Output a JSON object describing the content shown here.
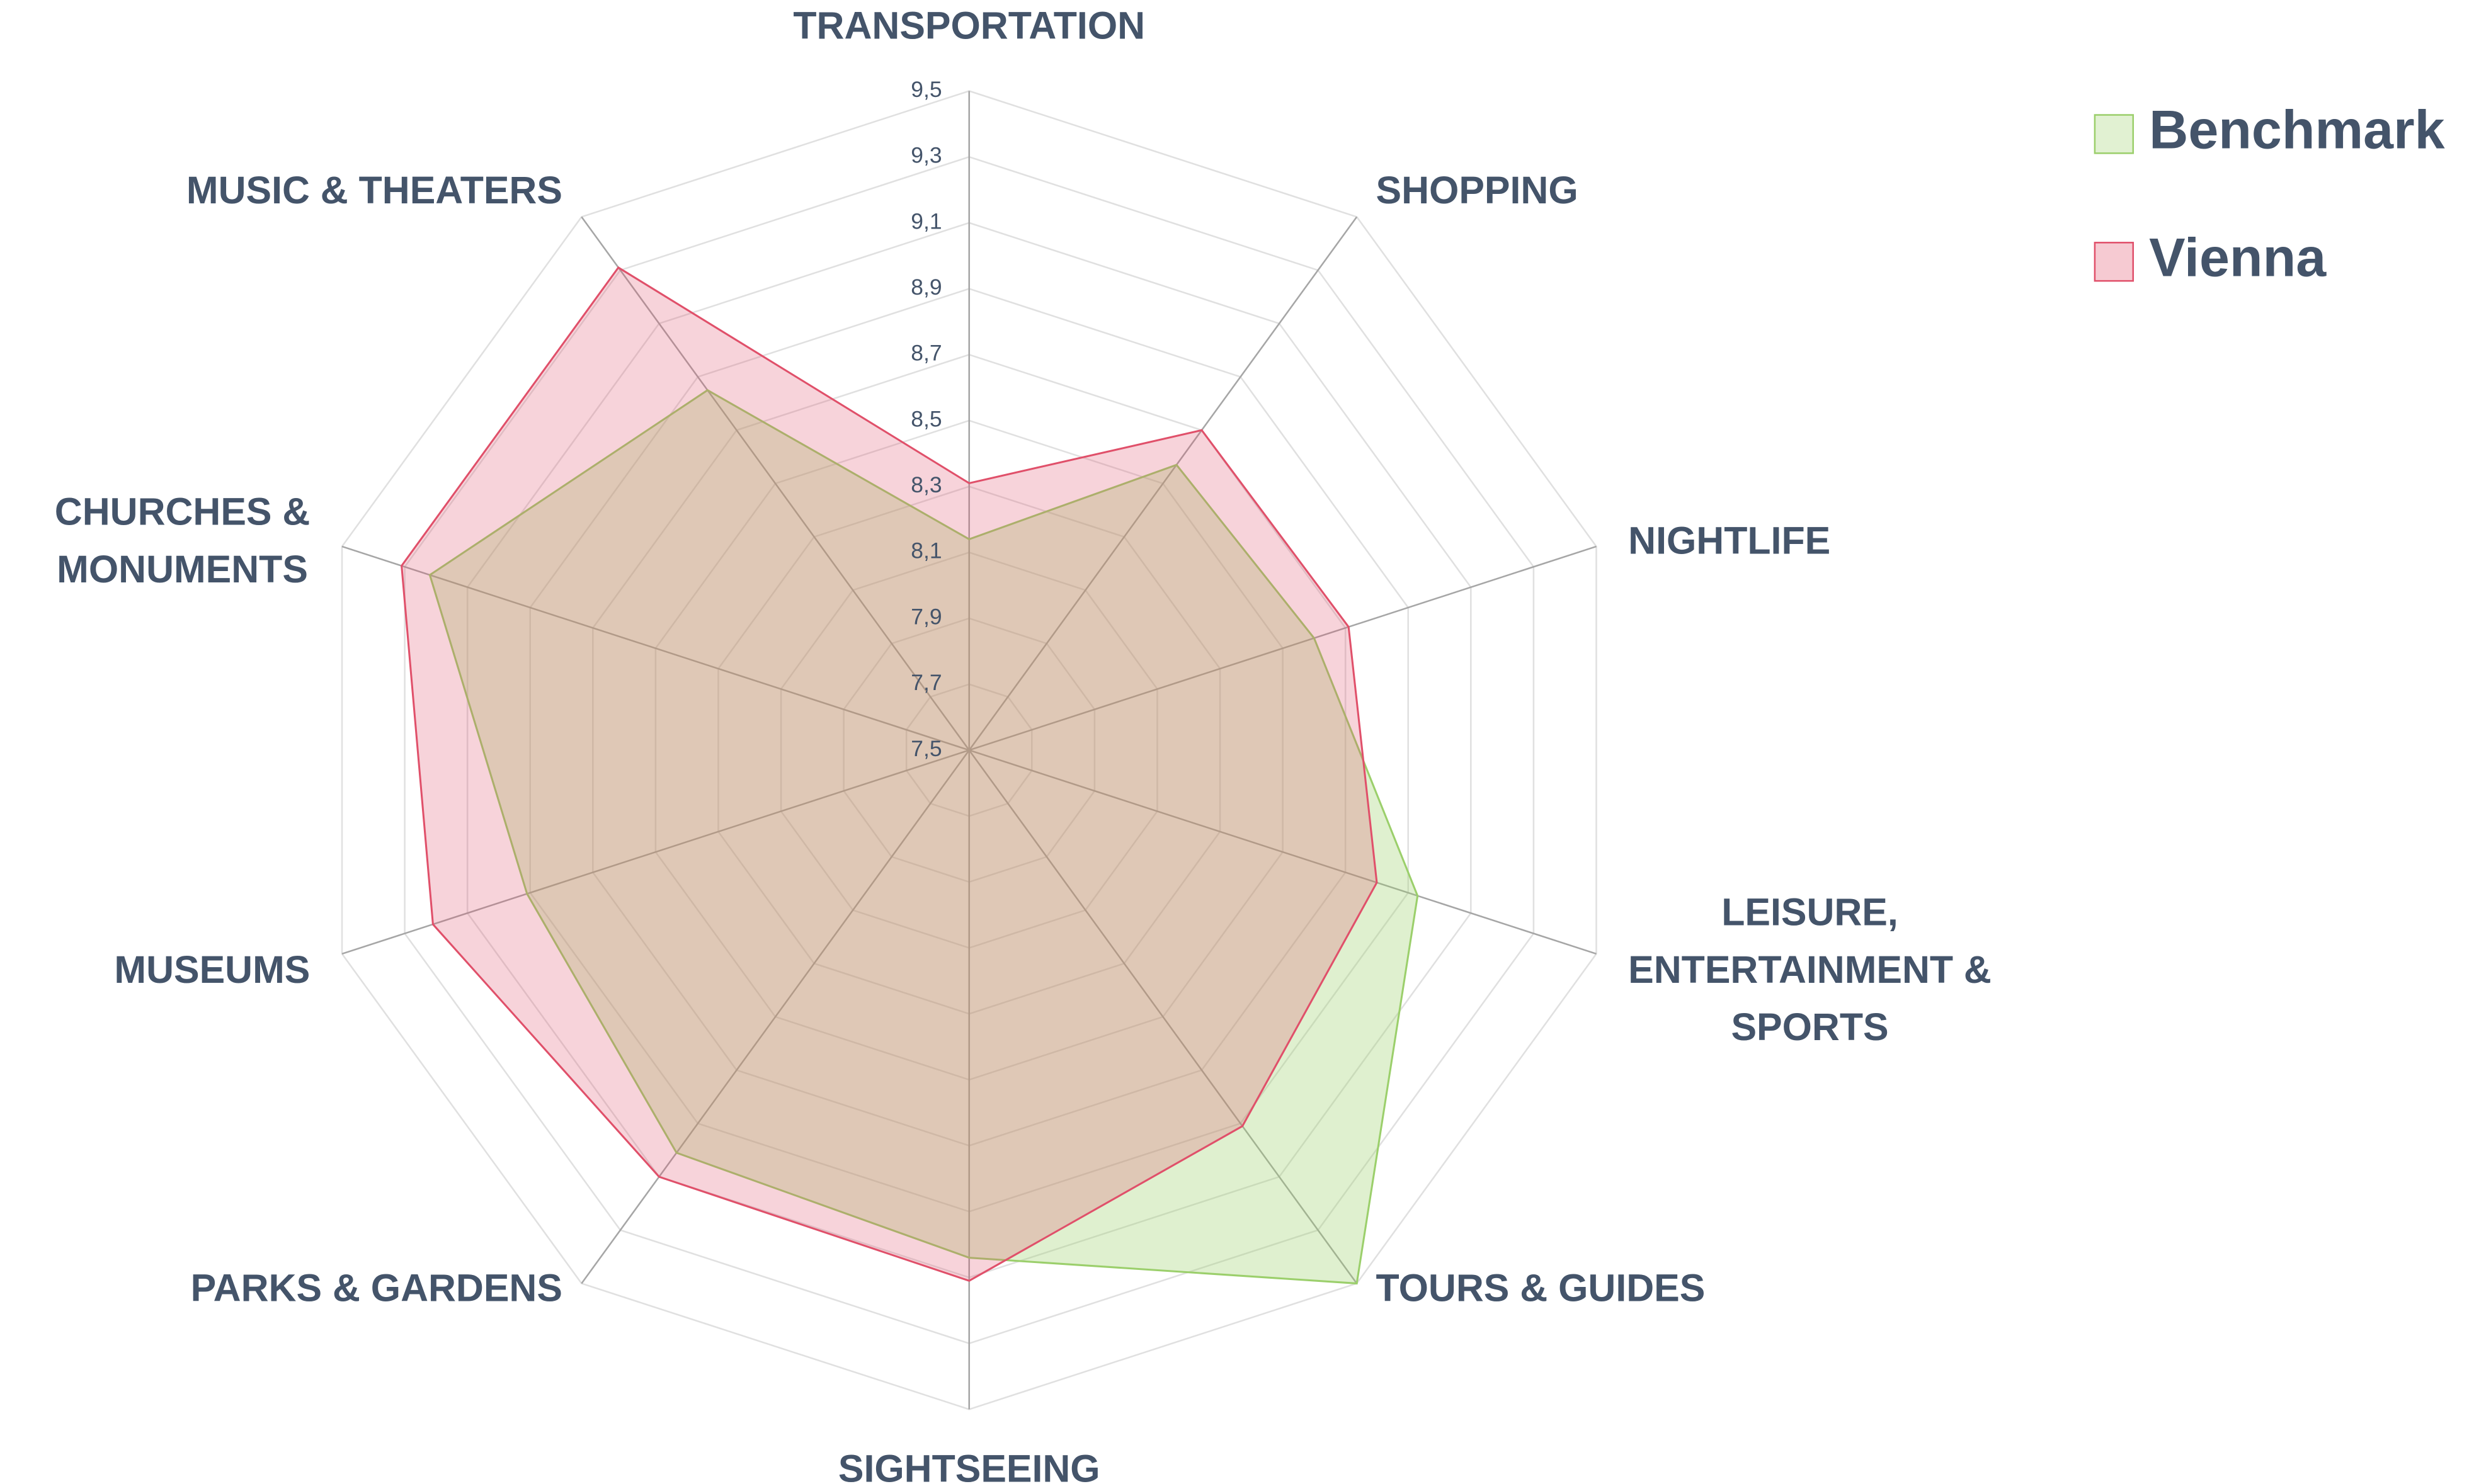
{
  "chart_data": {
    "type": "radar",
    "categories": [
      "TRANSPORTATION",
      "SHOPPING",
      "NIGHTLIFE",
      "LEISURE,\nENTERTAINMENT &\nSPORTS",
      "TOURS & GUIDES",
      "SIGHTSEEING",
      "PARKS & GARDENS",
      "MUSEUMS",
      "CHURCHES &\nMONUMENTS",
      "MUSIC & THEATERS"
    ],
    "series": [
      {
        "name": "Benchmark",
        "color": "#9bcf6b",
        "values": [
          8.14,
          8.57,
          8.6,
          8.93,
          9.5,
          9.04,
          9.01,
          8.91,
          9.22,
          8.85
        ]
      },
      {
        "name": "Vienna",
        "color": "#e0506a",
        "values": [
          8.31,
          8.7,
          8.71,
          8.8,
          8.91,
          9.11,
          9.1,
          9.21,
          9.31,
          9.31
        ]
      }
    ],
    "ylim": [
      7.5,
      9.5
    ],
    "yticks": [
      {
        "value": 7.5,
        "label": "7,5"
      },
      {
        "value": 7.7,
        "label": "7,7"
      },
      {
        "value": 7.9,
        "label": "7,9"
      },
      {
        "value": 8.1,
        "label": "8,1"
      },
      {
        "value": 8.3,
        "label": "8,3"
      },
      {
        "value": 8.5,
        "label": "8,5"
      },
      {
        "value": 8.7,
        "label": "8,7"
      },
      {
        "value": 8.9,
        "label": "8,9"
      },
      {
        "value": 9.1,
        "label": "9,1"
      },
      {
        "value": 9.3,
        "label": "9,3"
      },
      {
        "value": 9.5,
        "label": "9,5"
      }
    ],
    "grid": true,
    "legend": "top-right"
  }
}
